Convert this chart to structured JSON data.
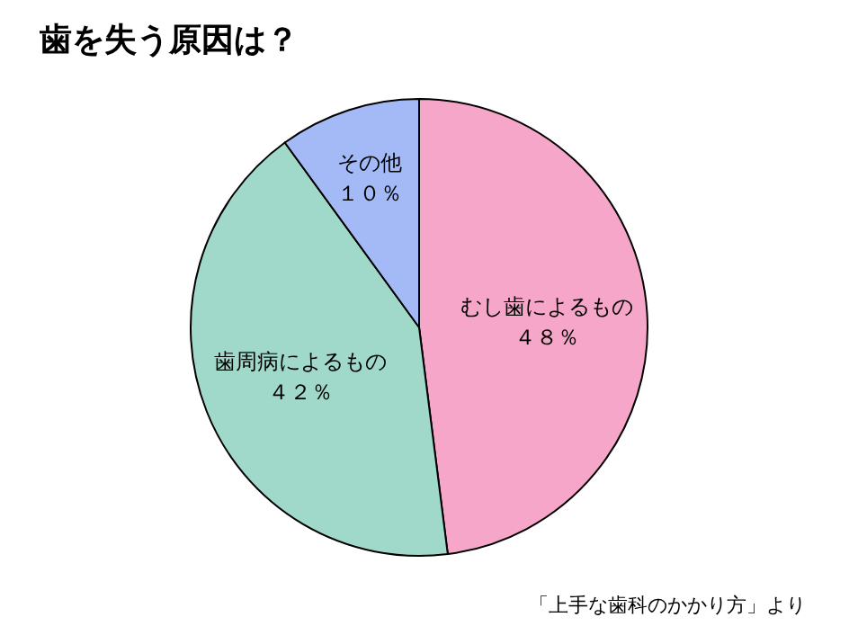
{
  "chart_data": {
    "type": "pie",
    "title": "歯を失う原因は？",
    "categories": [
      "むし歯によるもの",
      "歯周病によるもの",
      "その他"
    ],
    "values": [
      48,
      42,
      10
    ],
    "value_labels": [
      "４８％",
      "４２％",
      "１０％"
    ],
    "colors": [
      "#f5a6c9",
      "#a0d9c9",
      "#a3baf7"
    ],
    "legend": false,
    "annotations": [
      "「上手な歯科のかかり方」より"
    ]
  }
}
